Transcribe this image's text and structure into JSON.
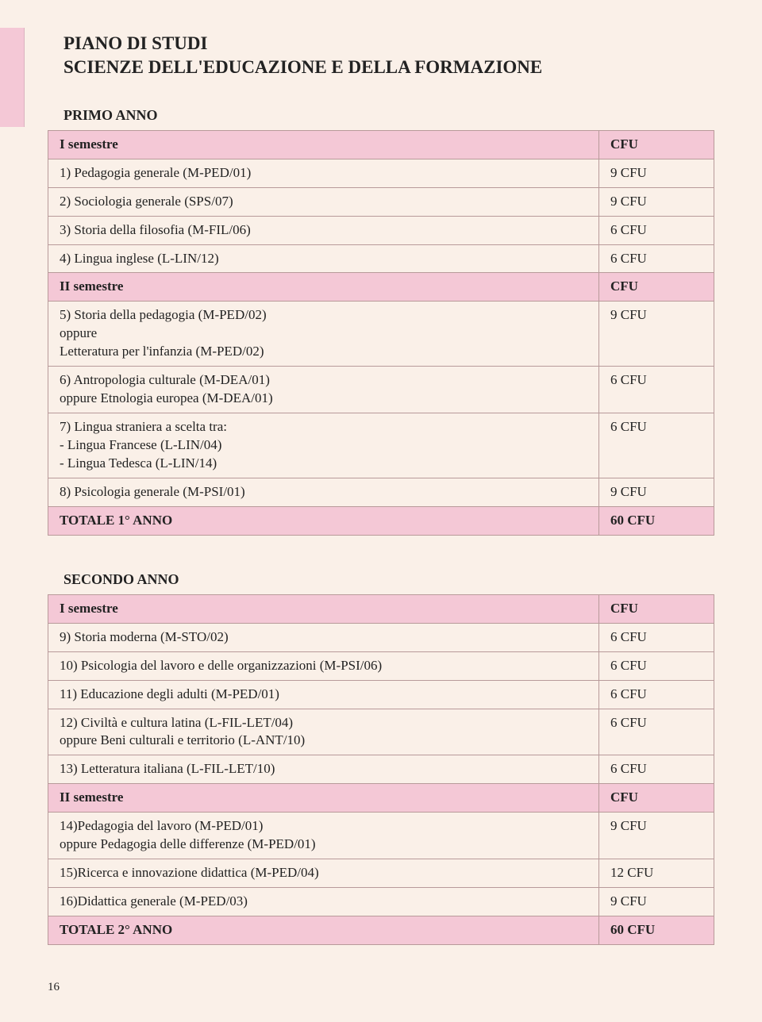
{
  "title_line1": "PIANO DI STUDI",
  "title_line2": "SCIENZE DELL'EDUCAZIONE E DELLA FORMAZIONE",
  "primo_anno": {
    "label": "PRIMO ANNO",
    "sem1_label": "I semestre",
    "sem1_cfu": "CFU",
    "rows1": [
      {
        "text": "1) Pedagogia generale (M-PED/01)",
        "cfu": "9 CFU"
      },
      {
        "text": "2) Sociologia generale (SPS/07)",
        "cfu": "9 CFU"
      },
      {
        "text": "3) Storia della filosofia (M-FIL/06)",
        "cfu": "6 CFU"
      },
      {
        "text": "4) Lingua inglese (L-LIN/12)",
        "cfu": "6 CFU"
      }
    ],
    "sem2_label": "II semestre",
    "sem2_cfu": "CFU",
    "rows2": [
      {
        "text": "5) Storia della pedagogia (M-PED/02)\noppure\nLetteratura per l'infanzia (M-PED/02)",
        "cfu": "9 CFU"
      },
      {
        "text": "6) Antropologia culturale (M-DEA/01)\noppure Etnologia europea (M-DEA/01)",
        "cfu": "6 CFU"
      },
      {
        "text": "7) Lingua straniera a scelta tra:\n- Lingua Francese (L-LIN/04)\n- Lingua Tedesca (L-LIN/14)",
        "cfu": "6 CFU"
      },
      {
        "text": "8) Psicologia generale (M-PSI/01)",
        "cfu": "9 CFU"
      }
    ],
    "total_label": "TOTALE 1° ANNO",
    "total_cfu": "60 CFU"
  },
  "secondo_anno": {
    "label": "SECONDO ANNO",
    "sem1_label": "I semestre",
    "sem1_cfu": "CFU",
    "rows1": [
      {
        "text": "9) Storia moderna (M-STO/02)",
        "cfu": "6 CFU"
      },
      {
        "text": "10) Psicologia del lavoro e delle organizzazioni (M-PSI/06)",
        "cfu": "6 CFU"
      },
      {
        "text": "11) Educazione degli adulti (M-PED/01)",
        "cfu": "6 CFU"
      },
      {
        "text": "12) Civiltà e cultura latina (L-FIL-LET/04)\noppure Beni culturali e territorio (L-ANT/10)",
        "cfu": "6 CFU"
      },
      {
        "text": "13) Letteratura italiana (L-FIL-LET/10)",
        "cfu": "6 CFU"
      }
    ],
    "sem2_label": "II semestre",
    "sem2_cfu": "CFU",
    "rows2": [
      {
        "text": "14)Pedagogia del lavoro (M-PED/01)\noppure Pedagogia delle differenze (M-PED/01)",
        "cfu": "9 CFU"
      },
      {
        "text": "15)Ricerca e innovazione didattica (M-PED/04)",
        "cfu": "12 CFU"
      },
      {
        "text": "16)Didattica generale (M-PED/03)",
        "cfu": "9 CFU"
      }
    ],
    "total_label": "TOTALE 2° ANNO",
    "total_cfu": "60 CFU"
  },
  "page_number": "16",
  "colors": {
    "background": "#faf0e8",
    "header_row": "#f4c8d6",
    "border": "#b89a9a",
    "text": "#222"
  },
  "fonts": {
    "family": "Georgia, Times New Roman, serif",
    "title_size": 23,
    "section_size": 18,
    "body_size": 17
  }
}
